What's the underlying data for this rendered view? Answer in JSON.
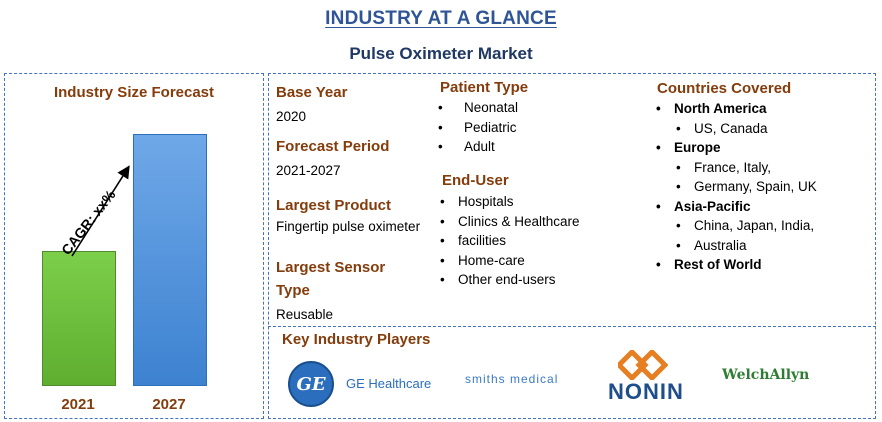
{
  "header": {
    "title": "INDUSTRY AT A GLANCE",
    "subtitle": "Pulse Oximeter Market"
  },
  "forecast": {
    "title": "Industry Size Forecast",
    "cagr_label": "CAGR: xx%",
    "chart_data": {
      "type": "bar",
      "categories": [
        "2021",
        "2027"
      ],
      "values": [
        0.53,
        1.0
      ],
      "colors": [
        "#6abf3e",
        "#4a8fdb"
      ]
    }
  },
  "details": {
    "base_year": {
      "label": "Base Year",
      "value": "2020"
    },
    "forecast_period": {
      "label": "Forecast Period",
      "value": "2021-2027"
    },
    "largest_product": {
      "label": "Largest Product",
      "value": "Fingertip pulse oximeter"
    },
    "largest_sensor": {
      "label_line1": "Largest Sensor",
      "label_line2": "Type",
      "value": "Reusable"
    }
  },
  "patient_type": {
    "title": "Patient Type",
    "items": [
      "Neonatal",
      "Pediatric",
      "Adult"
    ]
  },
  "end_user": {
    "title": "End-User",
    "items": [
      "Hospitals",
      "Clinics & Healthcare",
      "facilities",
      "Home-care",
      "Other end-users"
    ]
  },
  "countries": {
    "title": "Countries Covered",
    "regions": [
      {
        "name": "North America",
        "lines": [
          "US, Canada"
        ]
      },
      {
        "name": "Europe",
        "lines": [
          "France, Italy,",
          "Germany, Spain, UK"
        ]
      },
      {
        "name": "Asia-Pacific",
        "lines": [
          "China, Japan, India,",
          "Australia"
        ]
      },
      {
        "name": "Rest of World",
        "lines": []
      }
    ]
  },
  "players": {
    "title": "Key Industry Players",
    "ge_mark": "GE",
    "ge_name": "GE Healthcare",
    "smiths": "smiths medical",
    "nonin": "NONIN",
    "welch": "WelchAllyn"
  }
}
